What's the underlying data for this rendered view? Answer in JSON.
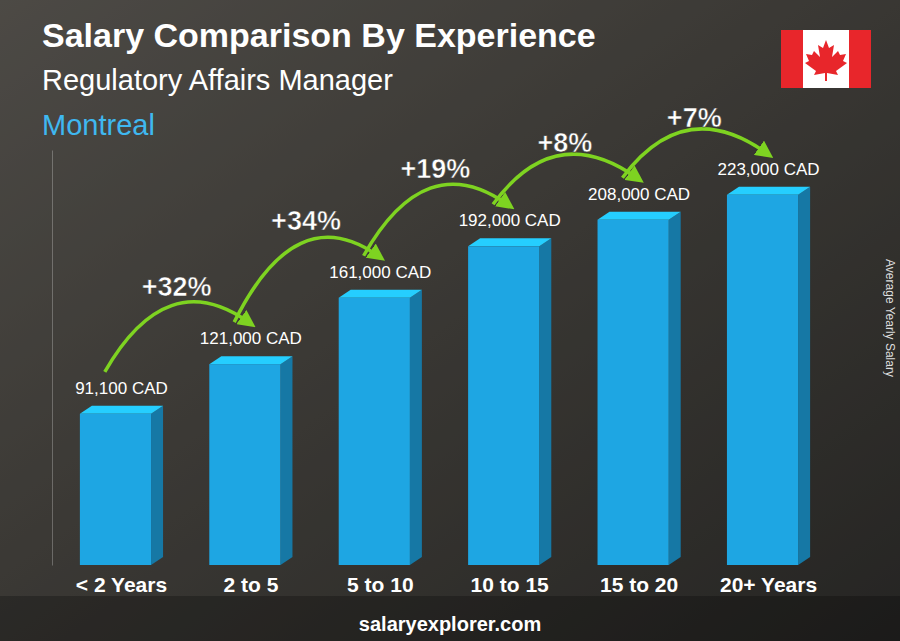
{
  "chart_data": {
    "type": "bar",
    "title": "Salary Comparison By Experience",
    "subtitle": "Regulatory Affairs Manager",
    "location": "Montreal",
    "y_label": "Average Yearly Salary",
    "footer": "salaryexplorer.com",
    "categories": [
      "< 2 Years",
      "2 to 5",
      "5 to 10",
      "10 to 15",
      "15 to 20",
      "20+ Years"
    ],
    "values": [
      91100,
      121000,
      161000,
      192000,
      208000,
      223000
    ],
    "value_labels": [
      "91,100 CAD",
      "121,000 CAD",
      "161,000 CAD",
      "192,000 CAD",
      "208,000 CAD",
      "223,000 CAD"
    ],
    "annotations": [
      "+32%",
      "+34%",
      "+19%",
      "+8%",
      "+7%"
    ],
    "color": "#1ea6e3",
    "ylim": [
      0,
      250000
    ],
    "data_labels": true,
    "tick_labels": "x",
    "grid": false
  }
}
